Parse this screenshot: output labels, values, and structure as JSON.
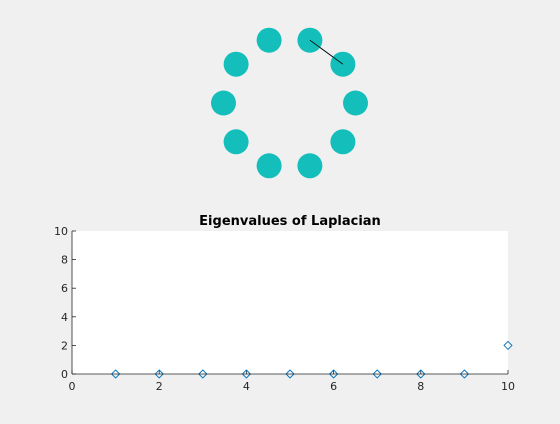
{
  "graph": {
    "node_color": "#14bfbb",
    "node_count": 10,
    "edges": [
      [
        0,
        1
      ]
    ]
  },
  "chart_data": {
    "type": "scatter",
    "title": "Eigenvalues of Laplacian",
    "xlabel": "",
    "ylabel": "",
    "xlim": [
      0,
      10
    ],
    "ylim": [
      0,
      10
    ],
    "xticks": [
      "0",
      "2",
      "4",
      "6",
      "8",
      "10"
    ],
    "yticks": [
      "0",
      "2",
      "4",
      "6",
      "8",
      "10"
    ],
    "x": [
      1,
      2,
      3,
      4,
      5,
      6,
      7,
      8,
      9,
      10
    ],
    "series": [
      {
        "values": [
          0,
          0,
          0,
          0,
          0,
          0,
          0,
          0,
          0,
          2
        ],
        "marker": "diamond-open",
        "color": "#0072bd"
      }
    ],
    "grid": false
  }
}
